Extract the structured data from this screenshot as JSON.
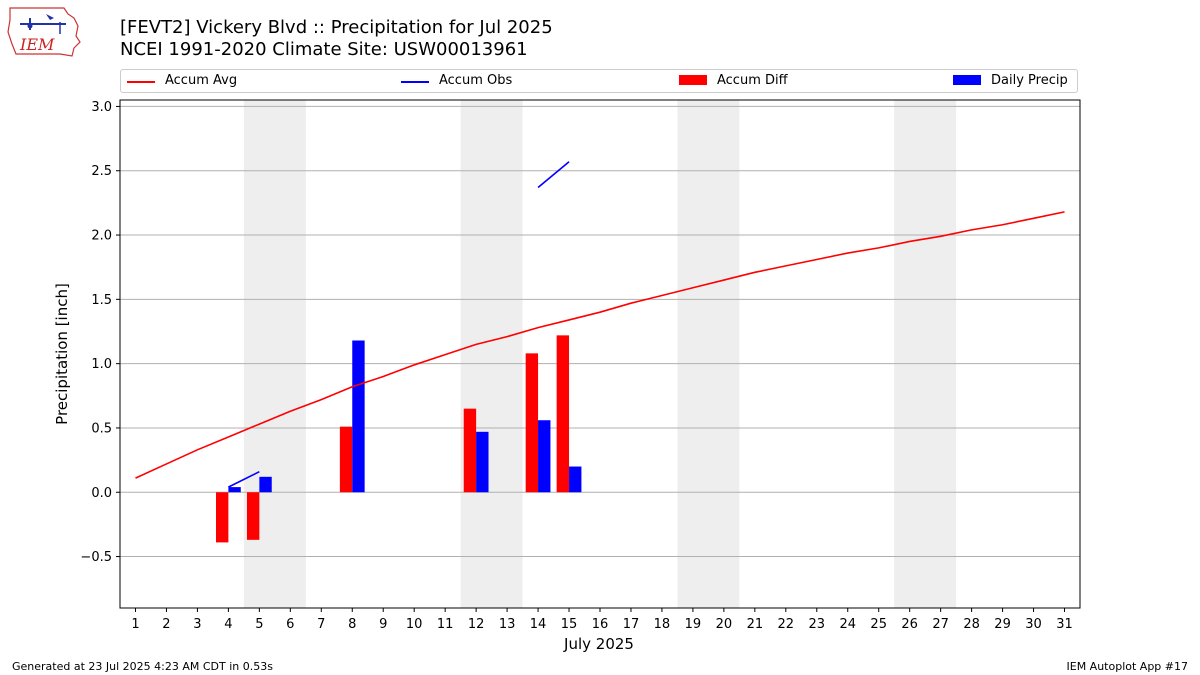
{
  "header": {
    "title_line1": "[FEVT2] Vickery Blvd :: Precipitation for Jul 2025",
    "title_line2": "NCEI 1991-2020 Climate Site: USW00013961",
    "logo_text": "IEM"
  },
  "legend": {
    "placement": "top",
    "items": [
      {
        "label": "Accum Avg",
        "color": "#ff0000",
        "kind": "line"
      },
      {
        "label": "Accum Obs",
        "color": "#0000ff",
        "kind": "line"
      },
      {
        "label": "Accum Diff",
        "color": "#ff0000",
        "kind": "bar"
      },
      {
        "label": "Daily Precip",
        "color": "#0000ff",
        "kind": "bar"
      }
    ]
  },
  "chart_data": {
    "type": "bar",
    "xlabel": "July 2025",
    "ylabel": "Precipitation [inch]",
    "xlim": [
      0.5,
      31.5
    ],
    "ylim": [
      -0.9,
      3.05
    ],
    "x_ticks": [
      1,
      2,
      3,
      4,
      5,
      6,
      7,
      8,
      9,
      10,
      11,
      12,
      13,
      14,
      15,
      16,
      17,
      18,
      19,
      20,
      21,
      22,
      23,
      24,
      25,
      26,
      27,
      28,
      29,
      30,
      31
    ],
    "y_ticks": [
      -0.5,
      0.0,
      0.5,
      1.0,
      1.5,
      2.0,
      2.5,
      3.0
    ],
    "y_tick_labels": [
      "−0.5",
      "0.0",
      "0.5",
      "1.0",
      "1.5",
      "2.0",
      "2.5",
      "3.0"
    ],
    "grid": "horizontal",
    "weekend_shading": [
      [
        4.5,
        6.5
      ],
      [
        11.5,
        13.5
      ],
      [
        18.5,
        20.5
      ],
      [
        25.5,
        27.5
      ]
    ],
    "accum_avg": {
      "x": [
        1,
        2,
        3,
        4,
        5,
        6,
        7,
        8,
        9,
        10,
        11,
        12,
        13,
        14,
        15,
        16,
        17,
        18,
        19,
        20,
        21,
        22,
        23,
        24,
        25,
        26,
        27,
        28,
        29,
        30,
        31
      ],
      "y": [
        0.11,
        0.22,
        0.33,
        0.43,
        0.53,
        0.63,
        0.72,
        0.82,
        0.9,
        0.99,
        1.07,
        1.15,
        1.21,
        1.28,
        1.34,
        1.4,
        1.47,
        1.53,
        1.59,
        1.65,
        1.71,
        1.76,
        1.81,
        1.86,
        1.9,
        1.95,
        1.99,
        2.04,
        2.08,
        2.13,
        2.18
      ]
    },
    "accum_obs_segments": [
      {
        "x": [
          4,
          5
        ],
        "y": [
          0.04,
          0.16
        ]
      },
      {
        "x": [
          14,
          15
        ],
        "y": [
          2.37,
          2.57
        ]
      }
    ],
    "accum_diff": {
      "x": [
        4,
        5,
        8,
        12,
        14,
        15
      ],
      "y": [
        -0.39,
        -0.37,
        0.51,
        0.65,
        1.08,
        1.22
      ]
    },
    "daily_precip": {
      "x": [
        4,
        5,
        8,
        12,
        14,
        15
      ],
      "y": [
        0.04,
        0.12,
        1.18,
        0.47,
        0.56,
        0.2
      ]
    }
  },
  "footer": {
    "left": "Generated at 23 Jul 2025 4:23 AM CDT in 0.53s",
    "right": "IEM Autoplot App #17"
  }
}
